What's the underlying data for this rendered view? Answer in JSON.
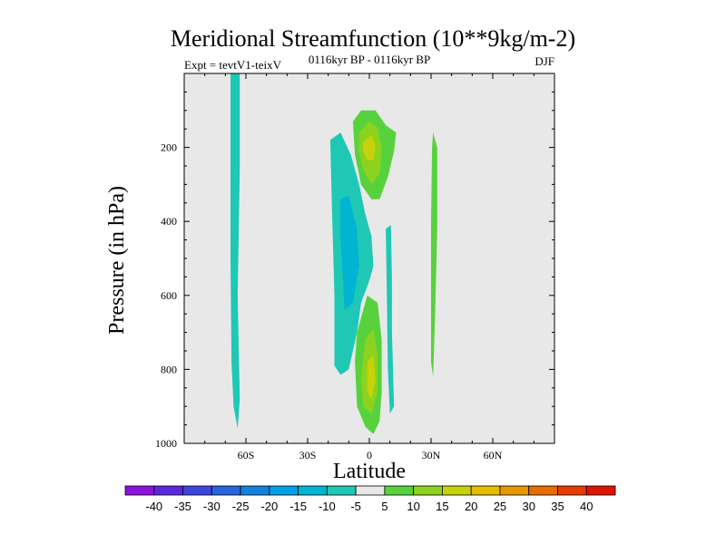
{
  "chart_data": {
    "type": "contour",
    "title": "Meridional Streamfunction (10**9kg/m-2)",
    "left_label": "Expt = tevtV1-teixV",
    "center_label": "0116kyr BP - 0116kyr BP",
    "right_label": "DJF",
    "xlabel": "Latitude",
    "ylabel": "Pressure (in hPa)",
    "xlim": [
      -90,
      90
    ],
    "ylim": [
      0,
      1000
    ],
    "y_reversed": true,
    "x_ticks": [
      {
        "value": -60,
        "label": "60S"
      },
      {
        "value": -30,
        "label": "30S"
      },
      {
        "value": 0,
        "label": "0"
      },
      {
        "value": 30,
        "label": "30N"
      },
      {
        "value": 60,
        "label": "60N"
      }
    ],
    "y_ticks": [
      {
        "value": 200,
        "label": "200"
      },
      {
        "value": 400,
        "label": "400"
      },
      {
        "value": 600,
        "label": "600"
      },
      {
        "value": 800,
        "label": "800"
      },
      {
        "value": 1000,
        "label": "1000"
      }
    ],
    "background_color": "#e8e8e8",
    "regions": [
      {
        "name": "cell-60s-negative",
        "level": -5,
        "color": "#1ec8b4",
        "points": [
          [
            -67.5,
            0
          ],
          [
            -63,
            0
          ],
          [
            -63,
            260
          ],
          [
            -64,
            600
          ],
          [
            -63,
            880
          ],
          [
            -64,
            960
          ],
          [
            -66,
            900
          ],
          [
            -67,
            780
          ],
          [
            -67.5,
            500
          ]
        ]
      },
      {
        "name": "cell-equatorial-negative-outer",
        "level": -5,
        "color": "#1ec8b4",
        "points": [
          [
            -19,
            180
          ],
          [
            -14,
            160
          ],
          [
            -9,
            220
          ],
          [
            -5,
            300
          ],
          [
            -2,
            380
          ],
          [
            1,
            440
          ],
          [
            2,
            520
          ],
          [
            0,
            560
          ],
          [
            -4,
            620
          ],
          [
            -6,
            700
          ],
          [
            -10,
            800
          ],
          [
            -14,
            815
          ],
          [
            -17,
            790
          ],
          [
            -17,
            600
          ],
          [
            -18,
            400
          ]
        ]
      },
      {
        "name": "cell-equatorial-negative-inner",
        "level": -10,
        "color": "#00b4d2",
        "points": [
          [
            -14,
            340
          ],
          [
            -10,
            330
          ],
          [
            -6,
            420
          ],
          [
            -5,
            520
          ],
          [
            -8,
            620
          ],
          [
            -12,
            640
          ],
          [
            -13,
            540
          ],
          [
            -14,
            450
          ]
        ]
      },
      {
        "name": "cell-equatorial-positive-upper-outer",
        "level": 5,
        "color": "#58d23c",
        "points": [
          [
            -8,
            130
          ],
          [
            -4,
            100
          ],
          [
            3,
            100
          ],
          [
            8,
            140
          ],
          [
            13,
            160
          ],
          [
            12,
            210
          ],
          [
            9,
            280
          ],
          [
            5,
            340
          ],
          [
            1,
            340
          ],
          [
            -4,
            300
          ],
          [
            -7,
            220
          ]
        ]
      },
      {
        "name": "cell-equatorial-positive-upper-inner",
        "level": 10,
        "color": "#8cd21e",
        "points": [
          [
            -5,
            160
          ],
          [
            0,
            130
          ],
          [
            4,
            145
          ],
          [
            6,
            200
          ],
          [
            5,
            270
          ],
          [
            1,
            300
          ],
          [
            -3,
            260
          ],
          [
            -5,
            210
          ]
        ]
      },
      {
        "name": "cell-equatorial-positive-upper-core",
        "level": 15,
        "color": "#c8d20a",
        "points": [
          [
            -3,
            185
          ],
          [
            1,
            165
          ],
          [
            3,
            195
          ],
          [
            2,
            235
          ],
          [
            -1,
            235
          ],
          [
            -3,
            210
          ]
        ]
      },
      {
        "name": "cell-equatorial-positive-lower-outer",
        "level": 5,
        "color": "#58d23c",
        "points": [
          [
            -4,
            660
          ],
          [
            -1,
            600
          ],
          [
            4,
            620
          ],
          [
            6,
            720
          ],
          [
            6,
            860
          ],
          [
            5,
            940
          ],
          [
            2,
            975
          ],
          [
            -2,
            955
          ],
          [
            -6,
            900
          ],
          [
            -7,
            780
          ],
          [
            -6,
            700
          ]
        ]
      },
      {
        "name": "cell-equatorial-positive-lower-inner",
        "level": 10,
        "color": "#8cd21e",
        "points": [
          [
            -2,
            720
          ],
          [
            2,
            690
          ],
          [
            4,
            760
          ],
          [
            4,
            860
          ],
          [
            1,
            920
          ],
          [
            -3,
            900
          ],
          [
            -4,
            820
          ]
        ]
      },
      {
        "name": "cell-equatorial-positive-lower-core",
        "level": 15,
        "color": "#c8d20a",
        "points": [
          [
            -1,
            780
          ],
          [
            2,
            760
          ],
          [
            3,
            830
          ],
          [
            1,
            880
          ],
          [
            -1,
            860
          ]
        ]
      },
      {
        "name": "cell-10n-negative",
        "level": -5,
        "color": "#1ec8b4",
        "points": [
          [
            8,
            420
          ],
          [
            10.5,
            410
          ],
          [
            11,
            560
          ],
          [
            11,
            700
          ],
          [
            12,
            900
          ],
          [
            10,
            920
          ],
          [
            9,
            800
          ],
          [
            8.5,
            600
          ]
        ]
      },
      {
        "name": "cell-30n-positive",
        "level": 5,
        "color": "#58d23c",
        "points": [
          [
            31,
            160
          ],
          [
            33,
            200
          ],
          [
            33,
            420
          ],
          [
            32,
            650
          ],
          [
            31,
            820
          ],
          [
            30,
            780
          ],
          [
            30,
            400
          ],
          [
            30.5,
            200
          ]
        ]
      }
    ],
    "colorbar": {
      "levels": [
        "-40",
        "-35",
        "-30",
        "-25",
        "-20",
        "-15",
        "-10",
        "-5",
        "5",
        "10",
        "15",
        "20",
        "25",
        "30",
        "35",
        "40"
      ],
      "colors": [
        "#8c14dc",
        "#5a28dc",
        "#3c46dc",
        "#2864dc",
        "#1482dc",
        "#00a0e6",
        "#00b4d2",
        "#1ec8b4",
        "#e8e8e8",
        "#58d23c",
        "#8cd21e",
        "#c8d20a",
        "#e6be00",
        "#e69600",
        "#e66e00",
        "#e63c00",
        "#dc1400"
      ]
    }
  }
}
